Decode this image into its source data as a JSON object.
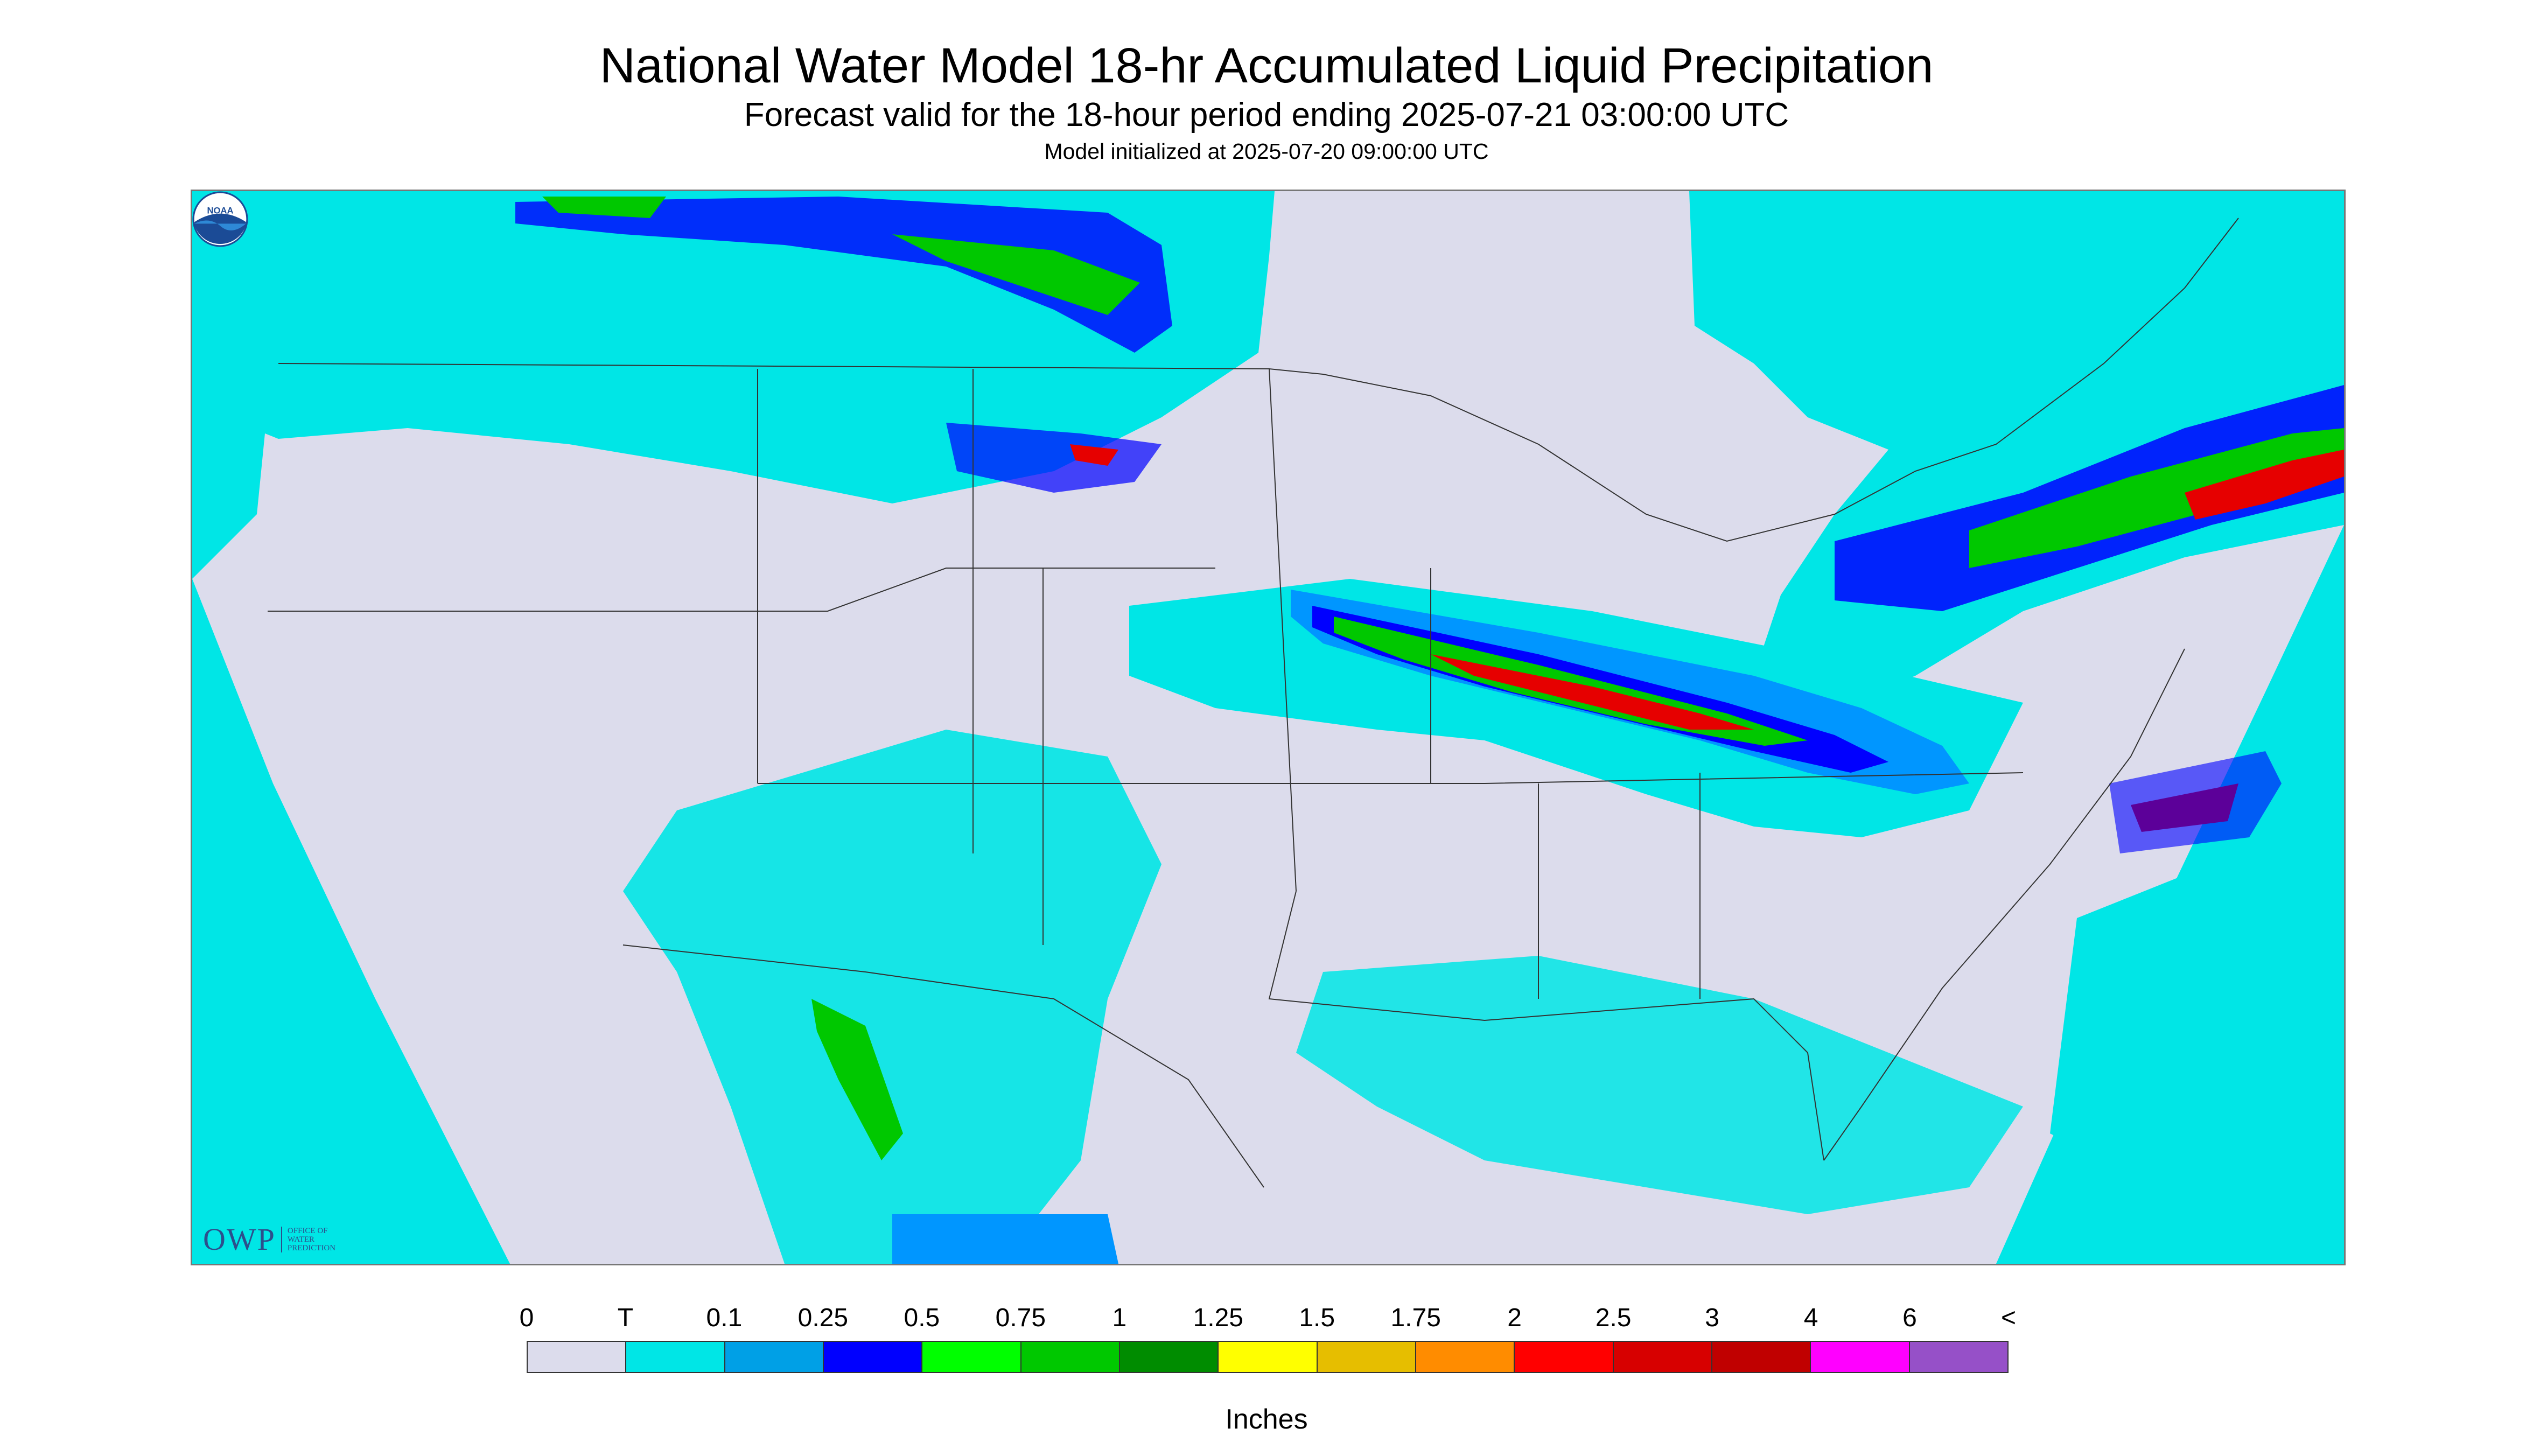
{
  "header": {
    "title": "National Water Model 18-hr Accumulated Liquid Precipitation",
    "subtitle": "Forecast valid for the 18-hour period ending 2025-07-21 03:00:00 UTC",
    "init_line": "Model initialized at 2025-07-20 09:00:00 UTC"
  },
  "logos": {
    "owp_mark": "OWP",
    "owp_text_line1": "Office of",
    "owp_text_line2": "Water",
    "owp_text_line3": "Prediction",
    "noaa_text": "NOAA"
  },
  "map_colors": {
    "background": "#dcdcec",
    "trace": "#00e6e6",
    "light_blue": "#0096ff",
    "blue": "#0000ff",
    "green": "#00c800",
    "yellow": "#ffff00",
    "orange": "#ff8c00",
    "red": "#e60000",
    "boundary": "#333333"
  },
  "legend": {
    "labels": [
      "0",
      "T",
      "0.1",
      "0.25",
      "0.5",
      "0.75",
      "1",
      "1.25",
      "1.5",
      "1.75",
      "2",
      "2.5",
      "3",
      "4",
      "6",
      "<"
    ],
    "colors": [
      "#dcdcec",
      "#00e6e6",
      "#00a0e6",
      "#0000ff",
      "#00ff00",
      "#00c800",
      "#008c00",
      "#ffff00",
      "#e6be00",
      "#ff8c00",
      "#ff0000",
      "#d70000",
      "#c00000",
      "#ff00ff",
      "#9650c8"
    ],
    "unit": "Inches"
  }
}
